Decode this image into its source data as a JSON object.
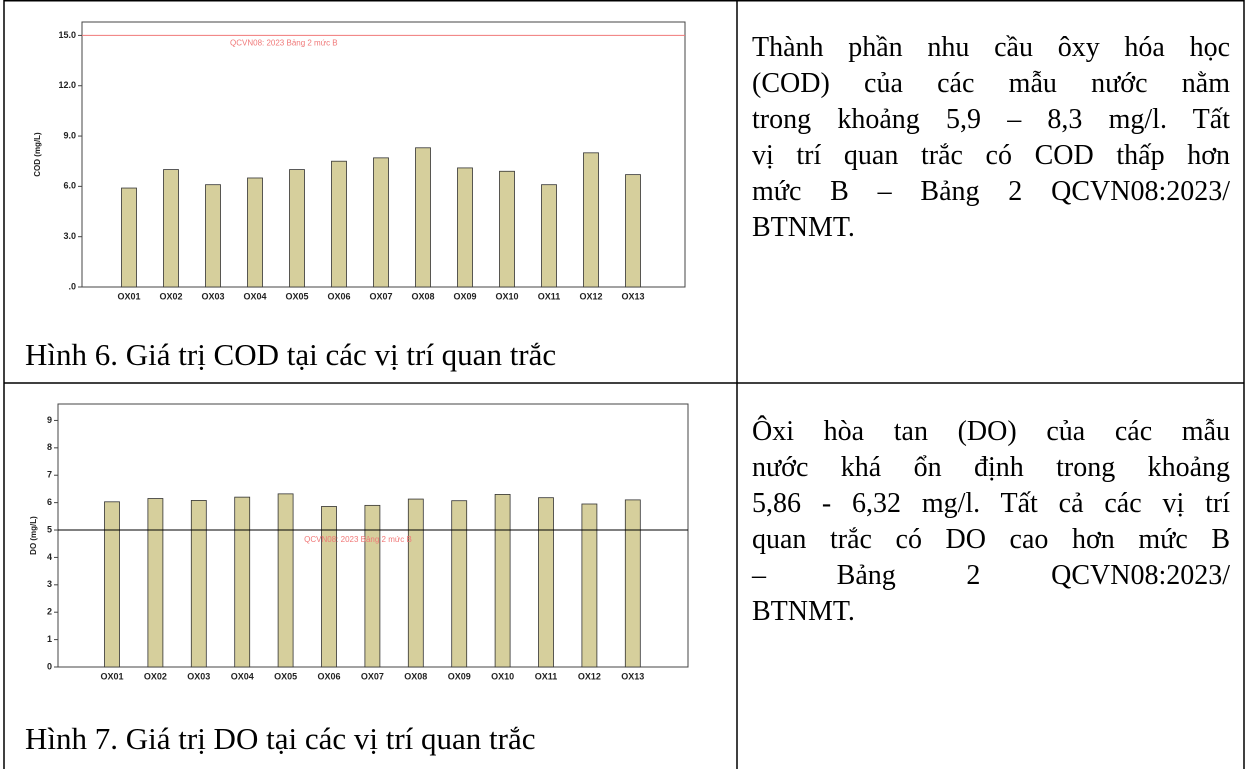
{
  "chart_data": [
    {
      "type": "bar",
      "y_label": "COD (mg/L)",
      "categories": [
        "OX01",
        "OX02",
        "OX03",
        "OX04",
        "OX05",
        "OX06",
        "OX07",
        "OX08",
        "OX09",
        "OX10",
        "OX11",
        "OX12",
        "OX13"
      ],
      "values": [
        5.9,
        7.0,
        6.1,
        6.5,
        7.0,
        7.5,
        7.7,
        8.3,
        7.1,
        6.9,
        6.1,
        8.0,
        6.7
      ],
      "color": "#d6cf9c",
      "ylim": [
        0,
        15.8
      ],
      "yticks": [
        {
          "value": 0,
          "label": ".0"
        },
        {
          "value": 3,
          "label": "3.0"
        },
        {
          "value": 6,
          "label": "6.0"
        },
        {
          "value": 9,
          "label": "9.0"
        },
        {
          "value": 12,
          "label": "12.0"
        },
        {
          "value": 15,
          "label": "15.0"
        }
      ],
      "reference_lines": [
        {
          "value": 15,
          "label": "QCVN08: 2023 Bảng 2 mức B",
          "color": "#f07878",
          "label_color": "#f07878"
        }
      ]
    },
    {
      "type": "bar",
      "y_label": "DO (mg/L)",
      "categories": [
        "OX01",
        "OX02",
        "OX03",
        "OX04",
        "OX05",
        "OX06",
        "OX07",
        "OX08",
        "OX09",
        "OX10",
        "OX11",
        "OX12",
        "OX13"
      ],
      "values": [
        6.03,
        6.15,
        6.08,
        6.2,
        6.32,
        5.86,
        5.9,
        6.13,
        6.07,
        6.3,
        6.18,
        5.95,
        6.1
      ],
      "color": "#d6cf9c",
      "ylim": [
        0,
        9.6
      ],
      "yticks": [
        0,
        1,
        2,
        3,
        4,
        5,
        6,
        7,
        8,
        9
      ],
      "reference_lines": [
        {
          "value": 5,
          "label": "QCVN08: 2023 Bảng 2 mức B",
          "color": "#000000",
          "label_color": "#f07878"
        }
      ]
    }
  ],
  "table": {
    "rows": [
      {
        "caption": "Hình 6. Giá trị COD tại các vị trí quan trắc",
        "text": [
          "Thành phần nhu cầu ôxy hóa học",
          "(COD) của các mẫu nước nằm",
          "trong khoảng 5,9 – 8,3 mg/l.  Tất",
          "vị trí quan trắc có COD thấp hơn",
          "mức B – Bảng 2 QCVN08:2023/",
          "BTNMT."
        ]
      },
      {
        "caption": "Hình 7. Giá trị DO tại các vị trí quan trắc",
        "text": [
          "Ôxi hòa tan (DO) của các mẫu",
          "nước khá ổn định trong khoảng",
          "5,86 - 6,32 mg/l. Tất cả các vị trí",
          "quan trắc có DO cao hơn mức B",
          "–   Bảng   2   QCVN08:2023/",
          "BTNMT."
        ]
      }
    ]
  }
}
